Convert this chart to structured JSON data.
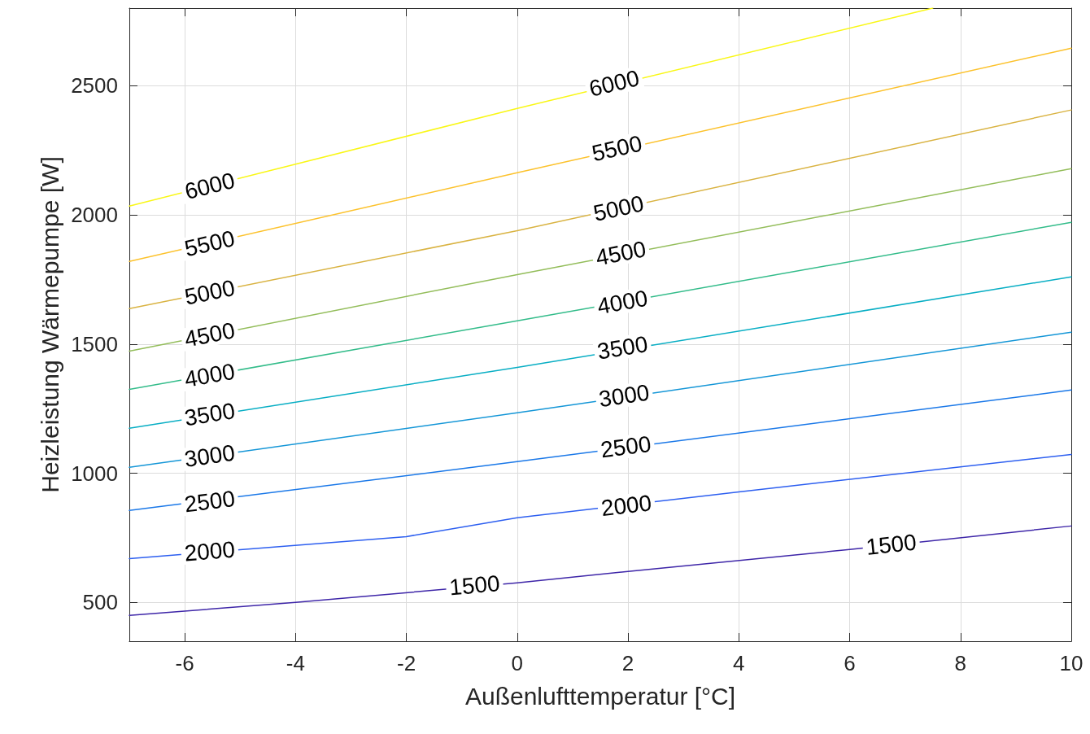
{
  "chart_data": {
    "type": "line",
    "xlabel": "Außenlufttemperatur [°C]",
    "ylabel": "Heizleistung Wärmepumpe [W]",
    "xlim": [
      -7,
      10
    ],
    "xticks": [
      -6,
      -4,
      -2,
      0,
      2,
      4,
      6,
      8,
      10
    ],
    "ylim": [
      350,
      2800
    ],
    "yticks": [
      500,
      1000,
      1500,
      2000,
      2500
    ],
    "grid": true,
    "marker": "none",
    "line_style": "solid",
    "series": [
      {
        "color": "#3e26a8",
        "x": [
          -7,
          -4,
          0,
          2,
          6,
          10
        ],
        "values": [
          450,
          500,
          576,
          620,
          705,
          796
        ]
      },
      {
        "color": "#2d5ff0",
        "x": [
          -7,
          -2,
          0,
          4,
          10
        ],
        "values": [
          670,
          755,
          828,
          928,
          1073
        ]
      },
      {
        "color": "#1a78e8",
        "x": [
          -7,
          0,
          10
        ],
        "values": [
          856,
          1045,
          1322
        ]
      },
      {
        "color": "#1496d7",
        "x": [
          -7,
          0,
          10
        ],
        "values": [
          1023,
          1234,
          1546
        ]
      },
      {
        "color": "#08aec4",
        "x": [
          -7,
          0,
          10
        ],
        "values": [
          1174,
          1410,
          1760
        ]
      },
      {
        "color": "#33bc8a",
        "x": [
          -7,
          0,
          10
        ],
        "values": [
          1325,
          1590,
          1971
        ]
      },
      {
        "color": "#93bd5a",
        "x": [
          -7,
          0,
          10
        ],
        "values": [
          1473,
          1769,
          2179
        ]
      },
      {
        "color": "#d9b342",
        "x": [
          -7,
          0,
          10
        ],
        "values": [
          1637,
          1939,
          2406
        ]
      },
      {
        "color": "#fcc22c",
        "x": [
          -7,
          0,
          10
        ],
        "values": [
          1820,
          2163,
          2645
        ]
      },
      {
        "color": "#f9f716",
        "x": [
          -7,
          0,
          7.5
        ],
        "values": [
          2034,
          2412,
          2800
        ]
      }
    ],
    "annotations": [
      {
        "text": "6000",
        "x": -5.55,
        "y": 2112
      },
      {
        "text": "6000",
        "x": 1.75,
        "y": 2509
      },
      {
        "text": "5500",
        "x": -5.55,
        "y": 1889
      },
      {
        "text": "5500",
        "x": 1.8,
        "y": 2257
      },
      {
        "text": "5000",
        "x": -5.55,
        "y": 1700
      },
      {
        "text": "5000",
        "x": 1.83,
        "y": 2025
      },
      {
        "text": "4500",
        "x": -5.55,
        "y": 1536
      },
      {
        "text": "4500",
        "x": 1.87,
        "y": 1851
      },
      {
        "text": "4000",
        "x": -5.55,
        "y": 1379
      },
      {
        "text": "4000",
        "x": 1.9,
        "y": 1662
      },
      {
        "text": "3500",
        "x": -5.55,
        "y": 1228
      },
      {
        "text": "3500",
        "x": 1.9,
        "y": 1486
      },
      {
        "text": "3000",
        "x": -5.55,
        "y": 1067
      },
      {
        "text": "3000",
        "x": 1.93,
        "y": 1300
      },
      {
        "text": "2500",
        "x": -5.55,
        "y": 891
      },
      {
        "text": "2500",
        "x": 1.96,
        "y": 1102
      },
      {
        "text": "2000",
        "x": -5.55,
        "y": 698
      },
      {
        "text": "2000",
        "x": 1.97,
        "y": 875
      },
      {
        "text": "1500",
        "x": -0.77,
        "y": 566
      },
      {
        "text": "1500",
        "x": 6.75,
        "y": 724
      }
    ]
  }
}
